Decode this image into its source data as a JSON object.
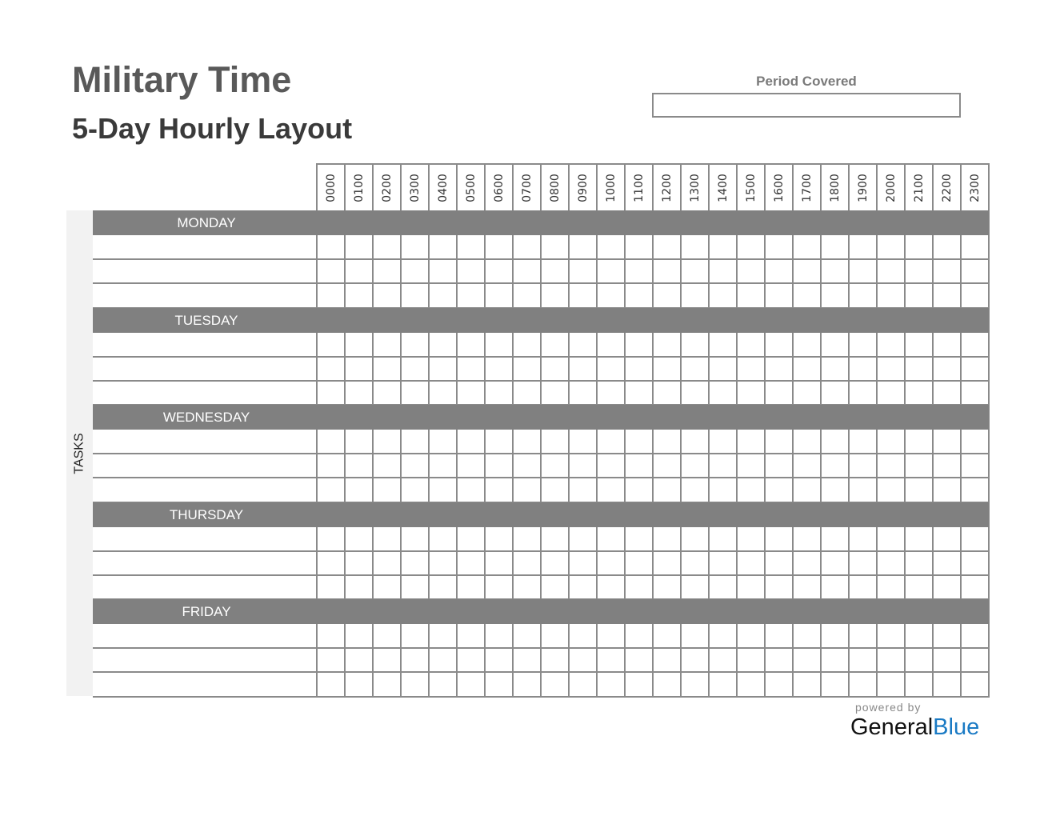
{
  "header": {
    "title": "Military Time",
    "subtitle": "5-Day Hourly Layout"
  },
  "period": {
    "label": "Period Covered",
    "value": ""
  },
  "tasks_label": "TASKS",
  "hours": [
    "0000",
    "0100",
    "0200",
    "0300",
    "0400",
    "0500",
    "0600",
    "0700",
    "0800",
    "0900",
    "1000",
    "1100",
    "1200",
    "1300",
    "1400",
    "1500",
    "1600",
    "1700",
    "1800",
    "1900",
    "2000",
    "2100",
    "2200",
    "2300"
  ],
  "days": [
    "MONDAY",
    "TUESDAY",
    "WEDNESDAY",
    "THURSDAY",
    "FRIDAY"
  ],
  "rows_per_day": 3,
  "footer": {
    "powered_by": "powered by",
    "brand_general": "General",
    "brand_blue": "Blue"
  },
  "colors": {
    "bar": "#808080",
    "grid": "#8a8a8a",
    "brand_blue": "#1a7ac4",
    "side": "#f2f2f2"
  }
}
